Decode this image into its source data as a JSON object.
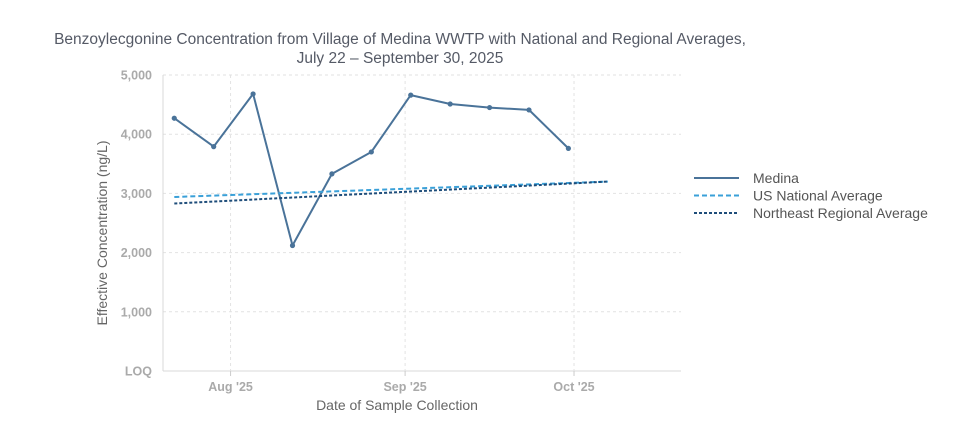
{
  "chart_data": {
    "type": "line",
    "title": "Benzoylecgonine Concentration from Village of Medina WWTP with National and Regional Averages,",
    "subtitle": "July 22 – September 30, 2025",
    "xlabel": "Date of Sample Collection",
    "ylabel": "Effective Concentration (ng/L)",
    "ylim": [
      0,
      5000
    ],
    "y_ticks": [
      {
        "value": 0,
        "label": "LOQ"
      },
      {
        "value": 1000,
        "label": "1,000"
      },
      {
        "value": 2000,
        "label": "2,000"
      },
      {
        "value": 3000,
        "label": "3,000"
      },
      {
        "value": 4000,
        "label": "4,000"
      },
      {
        "value": 5000,
        "label": "5,000"
      }
    ],
    "xlim": [
      "2025-07-20",
      "2025-10-20"
    ],
    "x_ticks": [
      {
        "value": "2025-08-01",
        "label": "Aug '25"
      },
      {
        "value": "2025-09-01",
        "label": "Sep '25"
      },
      {
        "value": "2025-10-01",
        "label": "Oct '25"
      }
    ],
    "grid": true,
    "legend_position": "right",
    "series": [
      {
        "name": "Medina",
        "style": "solid-markers",
        "color": "#4a7399",
        "points": [
          {
            "x": "2025-07-22",
            "y": 4270
          },
          {
            "x": "2025-07-29",
            "y": 3790
          },
          {
            "x": "2025-08-05",
            "y": 4680
          },
          {
            "x": "2025-08-12",
            "y": 2120
          },
          {
            "x": "2025-08-19",
            "y": 3330
          },
          {
            "x": "2025-08-26",
            "y": 3700
          },
          {
            "x": "2025-09-02",
            "y": 4660
          },
          {
            "x": "2025-09-09",
            "y": 4510
          },
          {
            "x": "2025-09-16",
            "y": 4450
          },
          {
            "x": "2025-09-23",
            "y": 4410
          },
          {
            "x": "2025-09-30",
            "y": 3760
          }
        ]
      },
      {
        "name": "US National Average",
        "style": "dashed",
        "color": "#3aa0d8",
        "points": [
          {
            "x": "2025-07-22",
            "y": 2940
          },
          {
            "x": "2025-10-07",
            "y": 3200
          }
        ]
      },
      {
        "name": "Northeast Regional Average",
        "style": "dotted",
        "color": "#1e4d7a",
        "points": [
          {
            "x": "2025-07-22",
            "y": 2830
          },
          {
            "x": "2025-10-07",
            "y": 3200
          }
        ]
      }
    ]
  }
}
